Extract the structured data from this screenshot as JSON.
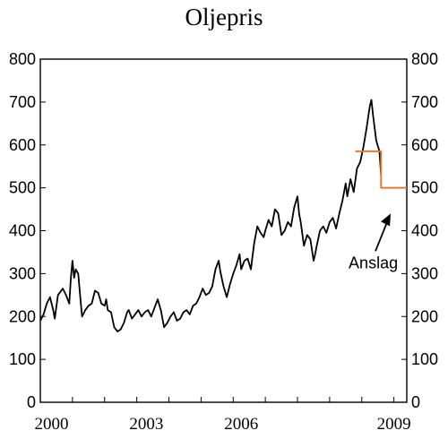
{
  "chart_data": {
    "type": "line",
    "title": "Oljepris",
    "ylim": [
      0,
      800
    ],
    "y_ticks": [
      0,
      100,
      200,
      300,
      400,
      500,
      600,
      700,
      800
    ],
    "y_tick_labels": [
      "0",
      "100",
      "200",
      "300",
      "400",
      "500",
      "600",
      "700",
      "800"
    ],
    "xlim": [
      2000.0,
      2009.2
    ],
    "x_ticks": [
      2000,
      2003,
      2006,
      2009
    ],
    "x_tick_labels": [
      "2000",
      "2003",
      "2006",
      "2009"
    ],
    "grid": false,
    "series": [
      {
        "color": "#000000",
        "points": [
          [
            2000.0,
            190
          ],
          [
            2000.1,
            205
          ],
          [
            2000.2,
            230
          ],
          [
            2000.3,
            245
          ],
          [
            2000.4,
            215
          ],
          [
            2000.45,
            195
          ],
          [
            2000.55,
            250
          ],
          [
            2000.7,
            265
          ],
          [
            2000.8,
            250
          ],
          [
            2000.9,
            230
          ],
          [
            2000.95,
            290
          ],
          [
            2001.0,
            330
          ],
          [
            2001.05,
            290
          ],
          [
            2001.1,
            310
          ],
          [
            2001.18,
            300
          ],
          [
            2001.25,
            240
          ],
          [
            2001.3,
            200
          ],
          [
            2001.4,
            215
          ],
          [
            2001.5,
            225
          ],
          [
            2001.6,
            230
          ],
          [
            2001.7,
            260
          ],
          [
            2001.8,
            255
          ],
          [
            2001.9,
            230
          ],
          [
            2002.0,
            225
          ],
          [
            2002.05,
            240
          ],
          [
            2002.1,
            215
          ],
          [
            2002.2,
            210
          ],
          [
            2002.3,
            175
          ],
          [
            2002.4,
            165
          ],
          [
            2002.5,
            170
          ],
          [
            2002.6,
            185
          ],
          [
            2002.7,
            210
          ],
          [
            2002.75,
            215
          ],
          [
            2002.85,
            195
          ],
          [
            2002.95,
            205
          ],
          [
            2003.05,
            215
          ],
          [
            2003.15,
            200
          ],
          [
            2003.25,
            210
          ],
          [
            2003.35,
            215
          ],
          [
            2003.45,
            200
          ],
          [
            2003.55,
            220
          ],
          [
            2003.65,
            240
          ],
          [
            2003.75,
            215
          ],
          [
            2003.85,
            175
          ],
          [
            2003.95,
            185
          ],
          [
            2004.05,
            200
          ],
          [
            2004.15,
            210
          ],
          [
            2004.25,
            190
          ],
          [
            2004.35,
            195
          ],
          [
            2004.45,
            210
          ],
          [
            2004.55,
            215
          ],
          [
            2004.65,
            205
          ],
          [
            2004.75,
            225
          ],
          [
            2004.85,
            230
          ],
          [
            2004.95,
            245
          ],
          [
            2005.05,
            265
          ],
          [
            2005.15,
            250
          ],
          [
            2005.25,
            255
          ],
          [
            2005.35,
            270
          ],
          [
            2005.45,
            310
          ],
          [
            2005.55,
            330
          ],
          [
            2005.6,
            305
          ],
          [
            2005.7,
            270
          ],
          [
            2005.8,
            245
          ],
          [
            2005.9,
            275
          ],
          [
            2006.0,
            300
          ],
          [
            2006.1,
            320
          ],
          [
            2006.2,
            345
          ],
          [
            2006.25,
            310
          ],
          [
            2006.35,
            330
          ],
          [
            2006.45,
            335
          ],
          [
            2006.55,
            310
          ],
          [
            2006.65,
            370
          ],
          [
            2006.75,
            410
          ],
          [
            2006.85,
            395
          ],
          [
            2006.95,
            385
          ],
          [
            2007.0,
            400
          ],
          [
            2007.1,
            425
          ],
          [
            2007.2,
            410
          ],
          [
            2007.3,
            450
          ],
          [
            2007.4,
            440
          ],
          [
            2007.5,
            390
          ],
          [
            2007.6,
            400
          ],
          [
            2007.7,
            420
          ],
          [
            2007.8,
            410
          ],
          [
            2007.9,
            455
          ],
          [
            2008.0,
            480
          ],
          [
            2008.05,
            440
          ],
          [
            2008.1,
            420
          ],
          [
            2008.2,
            365
          ],
          [
            2008.3,
            390
          ],
          [
            2008.4,
            380
          ],
          [
            2008.5,
            330
          ],
          [
            2008.55,
            345
          ],
          [
            2008.6,
            365
          ],
          [
            2008.7,
            400
          ],
          [
            2008.8,
            410
          ],
          [
            2008.9,
            395
          ],
          [
            2009.0,
            420
          ],
          [
            2009.1,
            430
          ],
          [
            2009.2,
            405
          ],
          [
            2009.3,
            440
          ],
          [
            2009.4,
            470
          ],
          [
            2009.5,
            510
          ],
          [
            2009.55,
            480
          ],
          [
            2009.65,
            520
          ],
          [
            2009.75,
            490
          ],
          [
            2009.85,
            545
          ],
          [
            2009.95,
            560
          ],
          [
            2010.05,
            595
          ],
          [
            2010.15,
            640
          ],
          [
            2010.25,
            690
          ],
          [
            2010.3,
            705
          ],
          [
            2010.35,
            670
          ],
          [
            2010.45,
            610
          ],
          [
            2010.55,
            585
          ],
          [
            2010.6,
            530
          ]
        ]
      },
      {
        "name": "Anslag",
        "color": "#e07b2e",
        "points": [
          [
            2009.8,
            585
          ],
          [
            2010.6,
            585
          ],
          [
            2010.6,
            500
          ],
          [
            2011.4,
            500
          ]
        ]
      }
    ],
    "annotations": [
      {
        "text": "Anslag",
        "arrow_to": [
          2010.9,
          440
        ]
      }
    ]
  }
}
